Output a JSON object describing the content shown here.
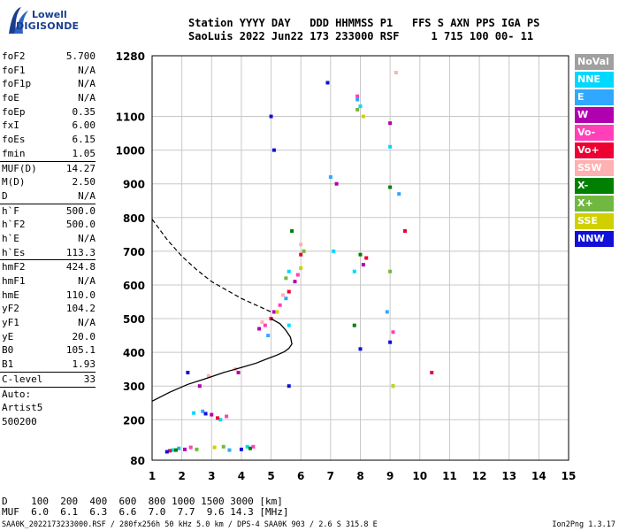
{
  "logo": {
    "line1": "Lowell",
    "line2": "DIGISONDE"
  },
  "header": {
    "line1": "Station YYYY DAY   DDD HHMMSS P1   FFS S AXN PPS IGA PS",
    "line2": "SaoLuis 2022 Jun22 173 233000 RSF     1 715 100 00- 11"
  },
  "params": [
    {
      "name": "foF2",
      "value": "5.700"
    },
    {
      "name": "foF1",
      "value": "N/A"
    },
    {
      "name": "foF1p",
      "value": "N/A"
    },
    {
      "name": "foE",
      "value": "N/A"
    },
    {
      "name": "foEp",
      "value": "0.35"
    },
    {
      "name": "fxI",
      "value": "6.00"
    },
    {
      "name": "foEs",
      "value": "6.15"
    },
    {
      "name": "fmin",
      "value": "1.05"
    },
    {
      "sep": true
    },
    {
      "name": "MUF(D)",
      "value": "14.27"
    },
    {
      "name": "M(D)",
      "value": "2.50"
    },
    {
      "name": "D",
      "value": "N/A"
    },
    {
      "sep": true
    },
    {
      "name": "h`F",
      "value": "500.0"
    },
    {
      "name": "h`F2",
      "value": "500.0"
    },
    {
      "name": "h`E",
      "value": "N/A"
    },
    {
      "name": "h`Es",
      "value": "113.3"
    },
    {
      "sep": true
    },
    {
      "name": "hmF2",
      "value": "424.8"
    },
    {
      "name": "hmF1",
      "value": "N/A"
    },
    {
      "name": "hmE",
      "value": "110.0"
    },
    {
      "name": "yF2",
      "value": "104.2"
    },
    {
      "name": "yF1",
      "value": "N/A"
    },
    {
      "name": "yE",
      "value": "20.0"
    },
    {
      "name": "B0",
      "value": "105.1"
    },
    {
      "name": "B1",
      "value": "1.93"
    },
    {
      "sep": true
    },
    {
      "name": "C-level",
      "value": "33"
    },
    {
      "sep": true
    },
    {
      "name": "Auto:",
      "value": ""
    },
    {
      "name": "Artist5",
      "value": ""
    },
    {
      "name": "500200",
      "value": ""
    }
  ],
  "legend": [
    {
      "label": "NoVal",
      "color": "#a0a0a0"
    },
    {
      "label": "NNE",
      "color": "#00d8ff"
    },
    {
      "label": "E",
      "color": "#30a8ff"
    },
    {
      "label": "W",
      "color": "#b000b0"
    },
    {
      "label": "Vo-",
      "color": "#ff40b8"
    },
    {
      "label": "Vo+",
      "color": "#ee0030"
    },
    {
      "label": "SSW",
      "color": "#ffb0b0"
    },
    {
      "label": "X-",
      "color": "#008000"
    },
    {
      "label": "X+",
      "color": "#70b840"
    },
    {
      "label": "SSE",
      "color": "#d0d000"
    },
    {
      "label": "NNW",
      "color": "#1010d8"
    }
  ],
  "footer": {
    "line1": "D    100  200  400  600  800 1000 1500 3000 [km]",
    "line2": "MUF  6.0  6.1  6.3  6.6  7.0  7.7  9.6 14.3 [MHz]",
    "line3": "SAA0K_2022173233000.RSF / 280fx256h 50 kHz 5.0 km / DPS-4 SAA0K 903 / 2.6 S 315.8 E",
    "version": "Ion2Png 1.3.17"
  },
  "chart_data": {
    "type": "scatter",
    "xlim": [
      1,
      15
    ],
    "ylim": [
      80,
      1280
    ],
    "x_ticks": [
      1,
      2,
      3,
      4,
      5,
      6,
      7,
      8,
      9,
      10,
      11,
      12,
      13,
      14,
      15
    ],
    "y_ticks": [
      80,
      200,
      300,
      400,
      500,
      600,
      700,
      800,
      900,
      1000,
      1100,
      1280
    ],
    "grid": true,
    "profile_curve": {
      "x": [
        1.0,
        1.6,
        2.2,
        2.8,
        3.4,
        4.0,
        4.5,
        4.9,
        5.2,
        5.45,
        5.6,
        5.7,
        5.65,
        5.5,
        5.3,
        5.0
      ],
      "y": [
        255,
        282,
        305,
        322,
        340,
        355,
        368,
        382,
        392,
        402,
        412,
        425,
        445,
        465,
        485,
        500
      ]
    },
    "dashed_trace": {
      "x": [
        1.0,
        1.5,
        2.0,
        2.5,
        3.0,
        3.5,
        4.0,
        4.5,
        5.0
      ],
      "y": [
        795,
        735,
        685,
        645,
        610,
        585,
        560,
        540,
        520
      ]
    },
    "series": [
      {
        "name": "NNE",
        "x": [
          1.7,
          2.4,
          5.6,
          7.1,
          7.8,
          8.0,
          9.0,
          9.1,
          5.6,
          3.3,
          4.2
        ],
        "y": [
          110,
          220,
          640,
          700,
          640,
          1130,
          1010,
          300,
          480,
          200,
          120
        ]
      },
      {
        "name": "E",
        "x": [
          1.9,
          2.7,
          4.9,
          5.5,
          7.0,
          7.9,
          8.9,
          9.3,
          3.6
        ],
        "y": [
          115,
          225,
          450,
          560,
          920,
          1150,
          520,
          870,
          110
        ]
      },
      {
        "name": "W",
        "x": [
          2.1,
          3.0,
          4.6,
          5.1,
          5.8,
          7.2,
          8.1,
          9.0,
          3.9,
          2.6
        ],
        "y": [
          112,
          215,
          470,
          520,
          610,
          900,
          660,
          1080,
          340,
          300
        ]
      },
      {
        "name": "Vo-",
        "x": [
          2.3,
          3.5,
          4.8,
          5.3,
          5.9,
          7.9,
          9.1,
          4.4
        ],
        "y": [
          118,
          210,
          480,
          540,
          630,
          1160,
          460,
          120
        ]
      },
      {
        "name": "Vo+",
        "x": [
          1.6,
          3.2,
          5.0,
          5.6,
          6.0,
          8.2,
          9.5,
          10.4
        ],
        "y": [
          108,
          205,
          500,
          580,
          690,
          680,
          760,
          340
        ]
      },
      {
        "name": "SSW",
        "x": [
          3.8,
          4.7,
          5.4,
          6.0,
          9.2,
          2.9
        ],
        "y": [
          350,
          490,
          570,
          720,
          1230,
          330
        ]
      },
      {
        "name": "X-",
        "x": [
          1.8,
          4.3,
          5.7,
          8.0,
          9.0,
          7.8
        ],
        "y": [
          110,
          115,
          760,
          690,
          890,
          480
        ]
      },
      {
        "name": "X+",
        "x": [
          2.5,
          5.5,
          6.1,
          7.9,
          9.0,
          3.4
        ],
        "y": [
          112,
          620,
          700,
          1120,
          640,
          120
        ]
      },
      {
        "name": "SSE",
        "x": [
          3.1,
          5.2,
          6.0,
          8.1,
          9.1
        ],
        "y": [
          118,
          520,
          650,
          1100,
          300
        ]
      },
      {
        "name": "NNW",
        "x": [
          1.5,
          2.8,
          4.0,
          5.0,
          5.6,
          6.9,
          8.0,
          9.0,
          5.1,
          2.2
        ],
        "y": [
          105,
          218,
          112,
          1100,
          300,
          1200,
          410,
          430,
          1000,
          340
        ]
      }
    ]
  }
}
